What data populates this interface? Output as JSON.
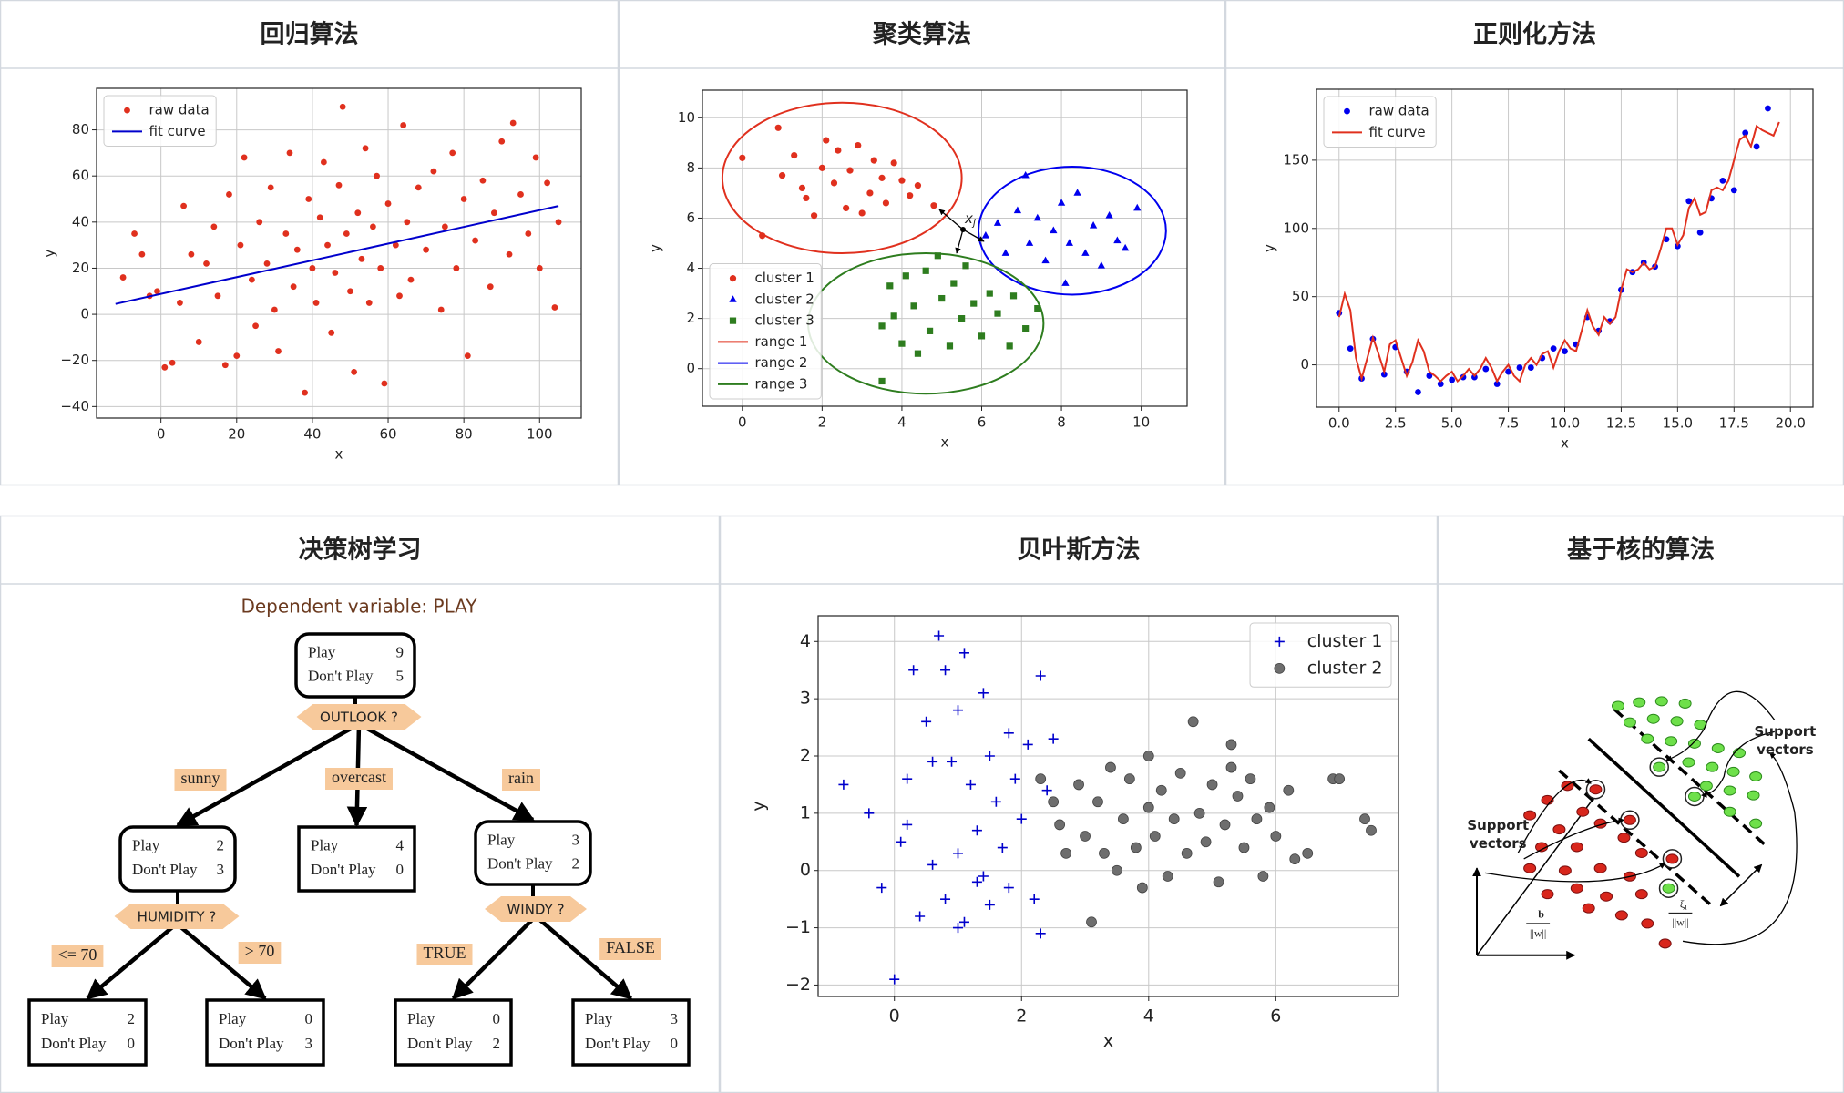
{
  "panel_titles": [
    "回归算法",
    "聚类算法",
    "正则化方法",
    "决策树学习",
    "贝叶斯方法",
    "基于核的算法"
  ],
  "chart_data": [
    {
      "type": "scatter",
      "xlabel": "x",
      "ylabel": "y",
      "grid": true,
      "legend": "upper left",
      "xlim": [
        -17,
        111
      ],
      "ylim": [
        -45,
        98
      ],
      "xticks": [
        0,
        20,
        40,
        60,
        80,
        100
      ],
      "yticks": [
        {
          "value": -40,
          "label": "−40"
        },
        {
          "value": -20,
          "label": "−20"
        },
        0,
        20,
        40,
        60,
        80
      ],
      "series": [
        {
          "name": "raw data",
          "color": "#e0301e",
          "marker": "circle",
          "x": [
            -10,
            -7,
            -5,
            -3,
            -1,
            1,
            3,
            5,
            6,
            8,
            10,
            12,
            14,
            15,
            17,
            18,
            20,
            21,
            22,
            24,
            25,
            26,
            28,
            29,
            30,
            31,
            33,
            34,
            35,
            36,
            38,
            39,
            40,
            41,
            42,
            43,
            44,
            45,
            46,
            47,
            48,
            49,
            50,
            51,
            52,
            53,
            54,
            55,
            56,
            57,
            58,
            59,
            60,
            62,
            63,
            64,
            65,
            66,
            68,
            70,
            72,
            74,
            75,
            77,
            78,
            80,
            81,
            83,
            85,
            87,
            88,
            90,
            92,
            93,
            95,
            97,
            99,
            100,
            102,
            104,
            105
          ],
          "values": [
            16,
            35,
            26,
            8,
            10,
            -23,
            -21,
            5,
            47,
            26,
            -12,
            22,
            38,
            8,
            -22,
            52,
            -18,
            30,
            68,
            15,
            -5,
            40,
            22,
            55,
            2,
            -16,
            35,
            70,
            12,
            28,
            -34,
            50,
            20,
            5,
            42,
            66,
            30,
            -8,
            18,
            56,
            90,
            35,
            10,
            -25,
            44,
            24,
            72,
            5,
            38,
            60,
            20,
            -30,
            48,
            30,
            8,
            82,
            40,
            15,
            55,
            28,
            62,
            2,
            38,
            70,
            20,
            50,
            -18,
            32,
            58,
            12,
            44,
            75,
            26,
            83,
            52,
            35,
            68,
            20,
            57,
            3,
            40
          ]
        },
        {
          "name": "fit curve",
          "color": "#0000cc",
          "mode": "line",
          "x": [
            -12,
            105
          ],
          "values": [
            4.5,
            47
          ]
        }
      ]
    },
    {
      "type": "scatter",
      "xlabel": "x",
      "ylabel": "y",
      "grid": true,
      "legend": "lower left",
      "xlim": [
        -1,
        11.15
      ],
      "ylim": [
        -1.5,
        11.1
      ],
      "xticks": [
        0,
        2,
        4,
        6,
        8,
        10
      ],
      "yticks": [
        0,
        2,
        4,
        6,
        8,
        10
      ],
      "annotation": {
        "text": "x",
        "subscript": "j"
      },
      "series": [
        {
          "name": "cluster 1",
          "color": "#e0301e",
          "marker": "circle",
          "x": [
            0,
            0.5,
            0.9,
            1,
            1.3,
            1.5,
            1.6,
            1.8,
            2,
            2.1,
            2.3,
            2.4,
            2.6,
            2.7,
            2.9,
            3,
            3.2,
            3.3,
            3.5,
            3.6,
            3.8,
            4,
            4.2,
            4.4,
            4.8
          ],
          "values": [
            8.4,
            5.3,
            9.6,
            7.7,
            8.5,
            7.2,
            6.8,
            6.1,
            8.0,
            9.1,
            7.4,
            8.7,
            6.4,
            7.9,
            8.9,
            6.2,
            7.0,
            8.3,
            7.6,
            6.6,
            8.2,
            7.5,
            6.9,
            7.3,
            6.5
          ]
        },
        {
          "name": "cluster 2",
          "color": "#0000ee",
          "marker": "triangle",
          "x": [
            6.1,
            6.4,
            6.6,
            6.9,
            7.1,
            7.2,
            7.4,
            7.6,
            7.8,
            8,
            8.1,
            8.2,
            8.4,
            8.6,
            8.8,
            9,
            9.2,
            9.4,
            9.6,
            9.9
          ],
          "values": [
            5.3,
            5.8,
            4.6,
            6.3,
            7.7,
            5.0,
            6.0,
            4.3,
            5.5,
            6.6,
            3.4,
            5.0,
            7.0,
            4.6,
            5.7,
            4.1,
            6.1,
            5.1,
            4.8,
            6.4
          ]
        },
        {
          "name": "cluster 3",
          "color": "#2e7d1f",
          "marker": "square",
          "x": [
            3.5,
            3.5,
            3.7,
            3.8,
            4,
            4.1,
            4.3,
            4.4,
            4.6,
            4.7,
            4.9,
            5,
            5.2,
            5.3,
            5.5,
            5.6,
            5.8,
            6,
            6.2,
            6.4,
            6.7,
            6.8,
            7.1,
            7.4
          ],
          "values": [
            -0.5,
            1.7,
            3.3,
            2.1,
            1.0,
            3.7,
            2.5,
            0.6,
            3.9,
            1.5,
            4.5,
            2.8,
            0.9,
            3.4,
            2.0,
            4.1,
            2.6,
            1.3,
            3.0,
            2.2,
            0.9,
            2.9,
            1.6,
            2.4
          ]
        },
        {
          "name": "range 1",
          "color": "#e0301e",
          "center": [
            2.5,
            7.6
          ],
          "radii": [
            3.0,
            3.0
          ]
        },
        {
          "name": "range 2",
          "color": "#0000ee",
          "center": [
            8.27,
            5.5
          ],
          "radii": [
            2.35,
            2.55
          ]
        },
        {
          "name": "range 3",
          "color": "#2e7d1f",
          "center": [
            4.6,
            1.8
          ],
          "radii": [
            2.95,
            2.8
          ]
        }
      ]
    },
    {
      "type": "scatter",
      "xlabel": "x",
      "ylabel": "y",
      "grid": true,
      "legend": "upper left",
      "xlim": [
        -1,
        21
      ],
      "ylim": [
        -31,
        202
      ],
      "xticks": [
        {
          "value": 0,
          "label": "0.0"
        },
        2.5,
        {
          "value": 5,
          "label": "5.0"
        },
        7.5,
        {
          "value": 10,
          "label": "10.0"
        },
        12.5,
        {
          "value": 15,
          "label": "15.0"
        },
        17.5,
        {
          "value": 20,
          "label": "20.0"
        }
      ],
      "yticks": [
        0,
        50,
        100,
        150
      ],
      "series": [
        {
          "name": "raw data",
          "color": "#0000ee",
          "marker": "circle",
          "x": [
            0,
            0.5,
            1,
            1.5,
            2,
            2.5,
            3,
            3.5,
            4,
            4.5,
            5,
            5.5,
            6,
            6.5,
            7,
            7.5,
            8,
            8.5,
            9,
            9.5,
            10,
            10.5,
            11,
            11.5,
            12,
            12.5,
            13,
            13.5,
            14,
            14.5,
            15,
            15.5,
            16,
            16.5,
            17,
            17.5,
            18,
            18.5,
            19
          ],
          "values": [
            38,
            12,
            -10,
            19,
            -7,
            13,
            -5,
            -20,
            -8,
            -14,
            -11,
            -9,
            -9,
            -3,
            -14,
            -5,
            -2,
            -2,
            5,
            12,
            10,
            15,
            35,
            25,
            32,
            55,
            68,
            75,
            72,
            92,
            87,
            120,
            97,
            122,
            135,
            128,
            170,
            160,
            188
          ]
        },
        {
          "name": "fit curve",
          "color": "#e0301e",
          "mode": "line",
          "x": [
            0,
            0.25,
            0.5,
            0.75,
            1,
            1.25,
            1.5,
            1.75,
            2,
            2.25,
            2.5,
            2.75,
            3,
            3.25,
            3.5,
            3.75,
            4,
            4.25,
            4.5,
            4.75,
            5,
            5.25,
            5.5,
            5.75,
            6,
            6.25,
            6.5,
            6.75,
            7,
            7.25,
            7.5,
            7.75,
            8,
            8.25,
            8.5,
            8.75,
            9,
            9.25,
            9.5,
            9.75,
            10,
            10.25,
            10.5,
            10.75,
            11,
            11.25,
            11.5,
            11.75,
            12,
            12.25,
            12.5,
            12.75,
            13,
            13.25,
            13.5,
            13.75,
            14,
            14.25,
            14.5,
            14.75,
            15,
            15.25,
            15.5,
            15.75,
            16,
            16.25,
            16.5,
            16.75,
            17,
            17.25,
            17.5,
            17.75,
            18,
            18.25,
            18.5,
            18.75,
            19,
            19.25,
            19.5
          ],
          "values": [
            35,
            52,
            40,
            5,
            -10,
            5,
            20,
            8,
            -5,
            15,
            18,
            5,
            -8,
            2,
            18,
            10,
            -5,
            -8,
            -12,
            -8,
            -5,
            -12,
            -8,
            -3,
            -8,
            -3,
            5,
            -2,
            -12,
            -5,
            0,
            -8,
            -12,
            0,
            5,
            0,
            8,
            10,
            -2,
            10,
            18,
            12,
            10,
            25,
            40,
            28,
            22,
            35,
            30,
            35,
            55,
            70,
            68,
            70,
            75,
            70,
            72,
            85,
            100,
            100,
            88,
            95,
            115,
            122,
            110,
            112,
            128,
            130,
            128,
            135,
            150,
            165,
            168,
            160,
            175,
            172,
            170,
            168,
            178
          ]
        }
      ]
    },
    {
      "type": "scatter",
      "xlabel": "x",
      "ylabel": "y",
      "grid": true,
      "legend": "upper right",
      "xlim": [
        -1.2,
        7.93
      ],
      "ylim": [
        -2.2,
        4.45
      ],
      "xticks": [
        0,
        2,
        4,
        6
      ],
      "yticks": [
        {
          "value": -2,
          "label": "−2"
        },
        {
          "value": -1,
          "label": "−1"
        },
        0,
        1,
        2,
        3,
        4
      ],
      "series": [
        {
          "name": "cluster 1",
          "color": "#0000cc",
          "marker": "plus",
          "x": [
            -0.8,
            -0.4,
            -0.2,
            0,
            0.1,
            0.2,
            0.3,
            0.4,
            0.5,
            0.6,
            0.7,
            0.8,
            0.8,
            0.9,
            1.0,
            1.0,
            1.1,
            1.1,
            1.2,
            1.3,
            1.3,
            1.4,
            1.5,
            1.5,
            1.6,
            1.7,
            1.8,
            1.8,
            1.9,
            2.0,
            2.1,
            2.2,
            2.3,
            2.4,
            2.5,
            2.3,
            1.4,
            0.6,
            1.0,
            0.2
          ],
          "values": [
            1.5,
            1.0,
            -0.3,
            -1.9,
            0.5,
            1.6,
            3.5,
            -0.8,
            2.6,
            0.1,
            4.1,
            3.5,
            -0.5,
            1.9,
            2.8,
            0.3,
            3.8,
            -0.9,
            1.5,
            0.7,
            -0.2,
            3.1,
            2.0,
            -0.6,
            1.2,
            0.4,
            2.4,
            -0.3,
            1.6,
            0.9,
            2.2,
            -0.5,
            3.4,
            1.4,
            2.3,
            -1.1,
            -0.1,
            1.9,
            -1.0,
            0.8
          ]
        },
        {
          "name": "cluster 2",
          "color": "#6e6e6e",
          "marker": "circle",
          "x": [
            2.3,
            2.5,
            2.6,
            2.7,
            2.9,
            3.0,
            3.1,
            3.2,
            3.3,
            3.4,
            3.5,
            3.6,
            3.7,
            3.8,
            3.9,
            4.0,
            4.0,
            4.1,
            4.2,
            4.3,
            4.4,
            4.5,
            4.6,
            4.7,
            4.8,
            4.9,
            5.0,
            5.1,
            5.2,
            5.3,
            5.4,
            5.5,
            5.6,
            5.7,
            5.8,
            5.9,
            6.0,
            6.2,
            6.3,
            6.5,
            6.9,
            7.0,
            7.4,
            7.5,
            5.3
          ],
          "values": [
            1.6,
            1.2,
            0.8,
            0.3,
            1.5,
            0.6,
            -0.9,
            1.2,
            0.3,
            1.8,
            0.0,
            0.9,
            1.6,
            0.4,
            -0.3,
            2.0,
            1.1,
            0.6,
            1.4,
            -0.1,
            0.9,
            1.7,
            0.3,
            2.6,
            1.0,
            0.5,
            1.5,
            -0.2,
            0.8,
            2.2,
            1.3,
            0.4,
            1.6,
            0.9,
            -0.1,
            1.1,
            0.6,
            1.4,
            0.2,
            0.3,
            1.6,
            1.6,
            0.9,
            0.7,
            1.8
          ]
        }
      ]
    }
  ],
  "decision_tree": {
    "title": "Dependent variable: PLAY",
    "row_labels": [
      "Play",
      "Don't Play"
    ],
    "nodes": [
      {
        "counts": [
          9,
          5
        ]
      },
      {
        "counts": [
          2,
          3
        ]
      },
      {
        "counts": [
          4,
          0
        ]
      },
      {
        "counts": [
          3,
          2
        ]
      },
      {
        "counts": [
          2,
          0
        ]
      },
      {
        "counts": [
          0,
          3
        ]
      },
      {
        "counts": [
          0,
          2
        ]
      },
      {
        "counts": [
          3,
          0
        ]
      }
    ],
    "splits": [
      "OUTLOOK ?",
      "HUMIDITY ?",
      "WINDY ?"
    ],
    "branches": [
      "sunny",
      "overcast",
      "rain",
      "<= 70",
      "> 70",
      "TRUE",
      "FALSE"
    ]
  },
  "svm_diagram": {
    "support_label": [
      "Support",
      "vectors"
    ],
    "bias_label": "−b",
    "norm_label": "||w||",
    "slack_symbol": "−ξ",
    "slack_index": "i"
  }
}
